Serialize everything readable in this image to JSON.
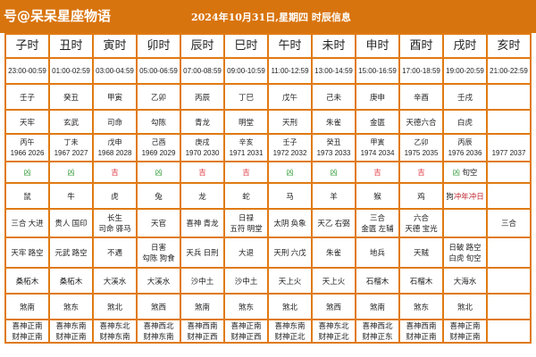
{
  "header": {
    "site": "号@呆呆星座物语",
    "title": "2024年10月31日,星期四 时辰信息"
  },
  "colors": {
    "bar": "#d8740e",
    "good": "#e0404a",
    "bad": "#3aa040"
  },
  "columns": [
    {
      "name": "子时",
      "time": "23:00-00:59",
      "ganzhi": "壬子",
      "star": "天牢",
      "year1": "丙午",
      "year2": "1966 2026",
      "luck": "凶",
      "luck_type": "bad",
      "extra": "",
      "animal": "鼠",
      "chong": "",
      "ji1": "三合 大进",
      "ji2": "",
      "xiong1": "天牢 路空",
      "xiong2": "",
      "wuxing": "桑柘木",
      "sha": "煞南",
      "xi": "喜神正南",
      "cai": "财神正南"
    },
    {
      "name": "丑时",
      "time": "01:00-02:59",
      "ganzhi": "癸丑",
      "star": "玄武",
      "year1": "丁未",
      "year2": "1967 2027",
      "luck": "凶",
      "luck_type": "bad",
      "extra": "",
      "animal": "牛",
      "chong": "",
      "ji1": "贵人 国印",
      "ji2": "",
      "xiong1": "元武 路空",
      "xiong2": "",
      "wuxing": "桑柘木",
      "sha": "煞东",
      "xi": "喜神东南",
      "cai": "财神正南"
    },
    {
      "name": "寅时",
      "time": "03:00-04:59",
      "ganzhi": "甲寅",
      "star": "司命",
      "year1": "戊申",
      "year2": "1968 2028",
      "luck": "吉",
      "luck_type": "good",
      "extra": "",
      "animal": "虎",
      "chong": "",
      "ji1": "长生",
      "ji2": "司命 驿马",
      "xiong1": "不遇",
      "xiong2": "",
      "wuxing": "大溪水",
      "sha": "煞北",
      "xi": "喜神东北",
      "cai": "财神东南"
    },
    {
      "name": "卯时",
      "time": "05:00-06:59",
      "ganzhi": "乙卯",
      "star": "勾陈",
      "year1": "己酉",
      "year2": "1969 2029",
      "luck": "凶",
      "luck_type": "bad",
      "extra": "",
      "animal": "兔",
      "chong": "",
      "ji1": "天官",
      "ji2": "",
      "xiong1": "日害",
      "xiong2": "勾陈 狗食",
      "wuxing": "大溪水",
      "sha": "煞西",
      "xi": "喜神西北",
      "cai": "财神东南"
    },
    {
      "name": "辰时",
      "time": "07:00-08:59",
      "ganzhi": "丙辰",
      "star": "青龙",
      "year1": "庚戌",
      "year2": "1970 2030",
      "luck": "吉",
      "luck_type": "good",
      "extra": "",
      "animal": "龙",
      "chong": "",
      "ji1": "喜神 青龙",
      "ji2": "",
      "xiong1": "天兵 日刑",
      "xiong2": "",
      "wuxing": "沙中土",
      "sha": "煞南",
      "xi": "喜神西南",
      "cai": "财神正西"
    },
    {
      "name": "巳时",
      "time": "09:00-10:59",
      "ganzhi": "丁巳",
      "star": "明堂",
      "year1": "辛亥",
      "year2": "1971 2031",
      "luck": "吉",
      "luck_type": "good",
      "extra": "",
      "animal": "蛇",
      "chong": "",
      "ji1": "日禄",
      "ji2": "五符 明堂",
      "xiong1": "大退",
      "xiong2": "",
      "wuxing": "沙中土",
      "sha": "煞东",
      "xi": "喜神正南",
      "cai": "财神正西"
    },
    {
      "name": "午时",
      "time": "11:00-12:59",
      "ganzhi": "戊午",
      "star": "天刑",
      "year1": "壬子",
      "year2": "1972 2032",
      "luck": "凶",
      "luck_type": "bad",
      "extra": "",
      "animal": "马",
      "chong": "",
      "ji1": "太阴 奂象",
      "ji2": "",
      "xiong1": "天刑 六戊",
      "xiong2": "",
      "wuxing": "天上火",
      "sha": "煞北",
      "xi": "喜神东南",
      "cai": "财神正北"
    },
    {
      "name": "未时",
      "time": "13:00-14:59",
      "ganzhi": "己未",
      "star": "朱雀",
      "year1": "癸丑",
      "year2": "1973 2033",
      "luck": "凶",
      "luck_type": "bad",
      "extra": "",
      "animal": "羊",
      "chong": "",
      "ji1": "天乙 右弼",
      "ji2": "",
      "xiong1": "朱雀",
      "xiong2": "",
      "wuxing": "天上火",
      "sha": "煞西",
      "xi": "喜神东北",
      "cai": "财神正北"
    },
    {
      "name": "申时",
      "time": "15:00-16:59",
      "ganzhi": "庚申",
      "star": "金匮",
      "year1": "甲寅",
      "year2": "1974 2034",
      "luck": "吉",
      "luck_type": "good",
      "extra": "",
      "animal": "猴",
      "chong": "",
      "ji1": "三合",
      "ji2": "金匮 左辅",
      "xiong1": "地兵",
      "xiong2": "",
      "wuxing": "石榴木",
      "sha": "煞南",
      "xi": "喜神西北",
      "cai": "财神正东"
    },
    {
      "name": "酉时",
      "time": "17:00-18:59",
      "ganzhi": "辛酉",
      "star": "天德六合",
      "year1": "乙卯",
      "year2": "1975 2035",
      "luck": "吉",
      "luck_type": "good",
      "extra": "",
      "animal": "鸡",
      "chong": "",
      "ji1": "六合",
      "ji2": "天德 宝光",
      "xiong1": "天贼",
      "xiong2": "",
      "wuxing": "石榴木",
      "sha": "煞东",
      "xi": "喜神西南",
      "cai": "财神正南"
    },
    {
      "name": "戌时",
      "time": "19:00-20:59",
      "ganzhi": "壬戌",
      "star": "白虎",
      "year1": "丙辰",
      "year2": "1976 2036",
      "luck": "凶",
      "luck_type": "bad",
      "extra": " 旬空",
      "animal": "狗",
      "chong": "冲年冲日",
      "ji1": "",
      "ji2": "",
      "xiong1": "日破 路空",
      "xiong2": "白虎 旬空",
      "wuxing": "大海水",
      "sha": "煞北",
      "xi": "喜神正南",
      "cai": "财神正南"
    },
    {
      "name": "亥时",
      "time": "21:00-22:59",
      "ganzhi": "",
      "star": "",
      "year1": "",
      "year2": "1977 2037",
      "luck": "",
      "luck_type": "bad",
      "extra": "",
      "animal": "",
      "chong": "",
      "ji1": "三合",
      "ji2": "",
      "xiong1": "",
      "xiong2": "",
      "wuxing": "",
      "sha": "",
      "xi": "",
      "cai": ""
    }
  ]
}
